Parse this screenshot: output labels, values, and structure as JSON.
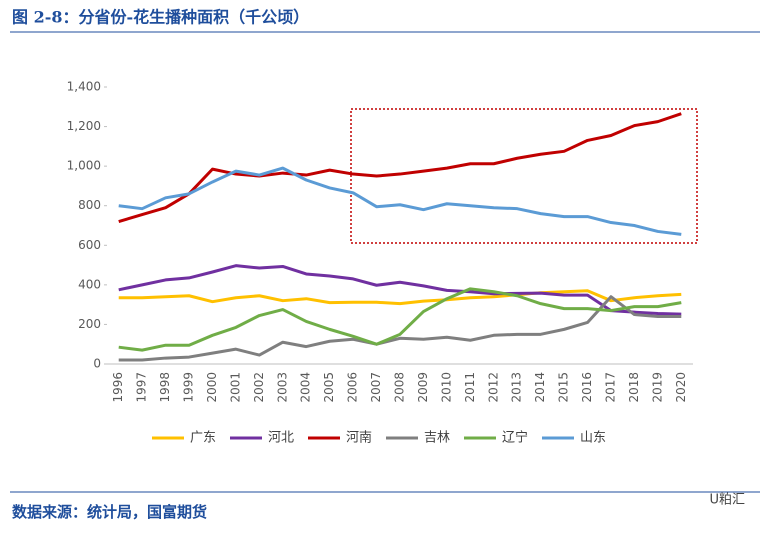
{
  "chart_data": {
    "type": "line",
    "title": "图 2-8：分省份-花生播种面积（千公顷）",
    "source": "数据来源：统计局，国富期货",
    "watermark": "U粕汇",
    "categories": [
      "1996",
      "1997",
      "1998",
      "1999",
      "2000",
      "2001",
      "2002",
      "2003",
      "2004",
      "2005",
      "2006",
      "2007",
      "2008",
      "2009",
      "2010",
      "2011",
      "2012",
      "2013",
      "2014",
      "2015",
      "2016",
      "2017",
      "2018",
      "2019",
      "2020"
    ],
    "ylim": [
      0,
      1400
    ],
    "yticks": [
      0,
      200,
      400,
      600,
      800,
      {
        "value": 1000,
        "label": "1,000"
      },
      {
        "value": 1200,
        "label": "1,200"
      },
      {
        "value": 1400,
        "label": "1,400"
      }
    ],
    "series": [
      {
        "name": "广东",
        "color": "#FFC000",
        "values": [
          335,
          335,
          340,
          345,
          315,
          335,
          345,
          320,
          330,
          310,
          312,
          312,
          305,
          318,
          325,
          335,
          340,
          350,
          360,
          365,
          370,
          320,
          335,
          345,
          352
        ]
      },
      {
        "name": "河北",
        "color": "#7030A0",
        "values": [
          375,
          400,
          425,
          435,
          465,
          497,
          485,
          493,
          455,
          445,
          430,
          398,
          413,
          395,
          372,
          365,
          355,
          357,
          358,
          348,
          348,
          270,
          262,
          255,
          252
        ]
      },
      {
        "name": "河南",
        "color": "#C00000",
        "values": [
          720,
          755,
          790,
          860,
          985,
          960,
          950,
          965,
          955,
          980,
          960,
          950,
          960,
          975,
          990,
          1012,
          1012,
          1040,
          1060,
          1075,
          1130,
          1155,
          1205,
          1225,
          1265
        ]
      },
      {
        "name": "吉林",
        "color": "#7F7F7F",
        "values": [
          20,
          20,
          30,
          35,
          55,
          75,
          45,
          110,
          88,
          115,
          125,
          100,
          130,
          125,
          135,
          120,
          145,
          150,
          150,
          175,
          210,
          340,
          250,
          240,
          240
        ]
      },
      {
        "name": "辽宁",
        "color": "#70AD47",
        "values": [
          85,
          70,
          95,
          95,
          145,
          185,
          245,
          275,
          215,
          175,
          140,
          100,
          150,
          265,
          330,
          380,
          365,
          345,
          305,
          280,
          280,
          270,
          290,
          290,
          310
        ]
      },
      {
        "name": "山东",
        "color": "#5B9BD5",
        "values": [
          800,
          785,
          840,
          860,
          920,
          975,
          955,
          990,
          930,
          890,
          865,
          795,
          805,
          780,
          810,
          800,
          790,
          785,
          760,
          745,
          745,
          715,
          700,
          670,
          655
        ]
      }
    ]
  }
}
